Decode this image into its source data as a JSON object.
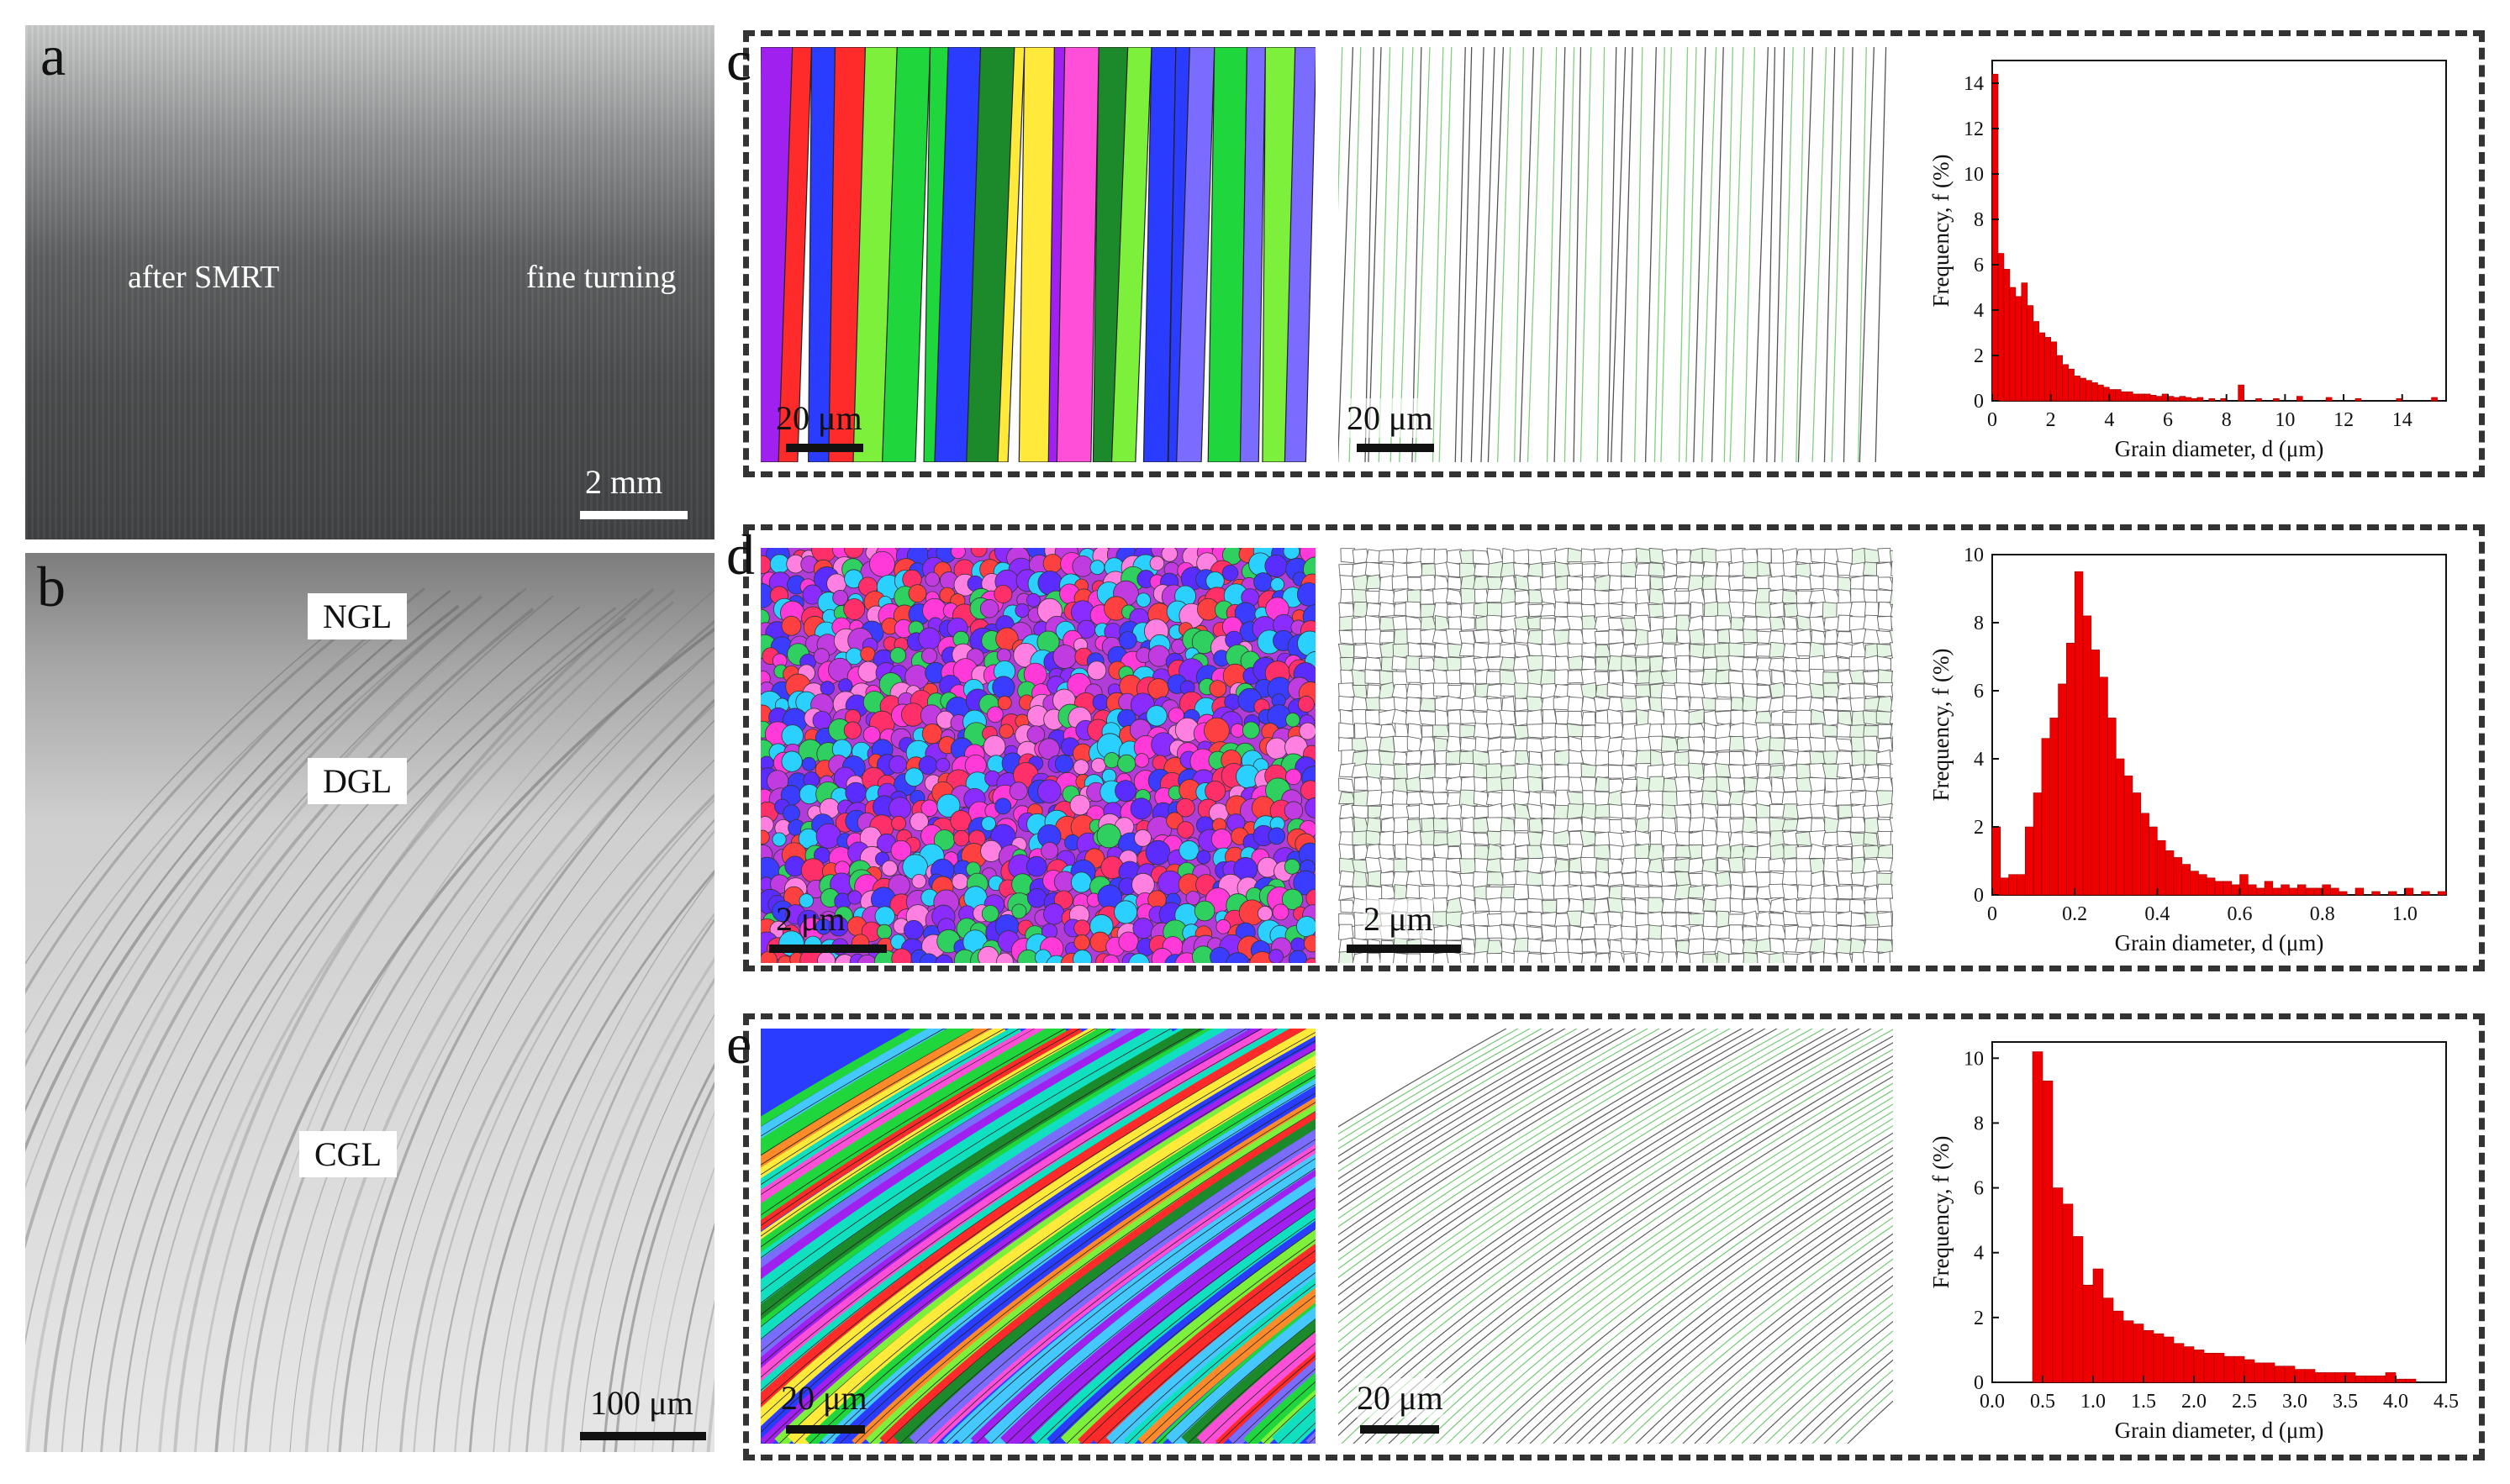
{
  "panels": {
    "a": {
      "letter": "a",
      "left_label": "after SMRT",
      "right_label": "fine turning",
      "scale": "2 mm"
    },
    "b": {
      "letter": "b",
      "zones": [
        "NGL",
        "DGL",
        "CGL"
      ],
      "scale": "100 μm"
    },
    "c": {
      "letter": "c",
      "scale_ipf": "20 μm",
      "scale_gb": "20 μm"
    },
    "d": {
      "letter": "d",
      "scale_ipf": "2 μm",
      "scale_gb": "2 μm"
    },
    "e": {
      "letter": "e",
      "scale_ipf": "20 μm",
      "scale_gb": "20 μm"
    }
  },
  "colors": {
    "bar": "#ee0000",
    "grain_green": "#8fd88f",
    "boundary": "#444444"
  },
  "chart_data": [
    {
      "type": "bar",
      "panel": "c",
      "xlabel": "Grain diameter, d (μm)",
      "ylabel": "Frequency, f (%)",
      "xlim": [
        0,
        15.5
      ],
      "ylim": [
        0,
        15
      ],
      "xticks": [
        "0",
        "2",
        "4",
        "6",
        "8",
        "10",
        "12",
        "14"
      ],
      "yticks": [
        "0",
        "2",
        "4",
        "6",
        "8",
        "10",
        "12",
        "14"
      ],
      "bin_width": 0.2,
      "x": [
        0.1,
        0.3,
        0.5,
        0.7,
        0.9,
        1.1,
        1.3,
        1.5,
        1.7,
        1.9,
        2.1,
        2.3,
        2.5,
        2.7,
        2.9,
        3.1,
        3.3,
        3.5,
        3.7,
        3.9,
        4.1,
        4.3,
        4.5,
        4.7,
        4.9,
        5.1,
        5.3,
        5.5,
        5.7,
        5.9,
        6.1,
        6.3,
        6.5,
        6.7,
        6.9,
        7.1,
        7.5,
        7.9,
        8.5,
        9.1,
        9.7,
        10.5,
        11.5,
        12.5,
        13.9,
        15.1
      ],
      "values": [
        14.4,
        6.5,
        5.8,
        5.0,
        4.6,
        5.2,
        4.2,
        3.5,
        3.0,
        2.8,
        2.6,
        2.0,
        1.6,
        1.4,
        1.1,
        1.0,
        0.9,
        0.8,
        0.7,
        0.6,
        0.5,
        0.5,
        0.4,
        0.4,
        0.3,
        0.3,
        0.3,
        0.25,
        0.2,
        0.3,
        0.2,
        0.15,
        0.2,
        0.15,
        0.1,
        0.15,
        0.1,
        0.1,
        0.7,
        0.1,
        0.1,
        0.2,
        0.15,
        0.1,
        0.1,
        0.15
      ]
    },
    {
      "type": "bar",
      "panel": "d",
      "xlabel": "Grain diameter, d (μm)",
      "ylabel": "Frequency, f (%)",
      "xlim": [
        0,
        1.1
      ],
      "ylim": [
        0,
        10
      ],
      "xticks": [
        "0",
        "0.2",
        "0.4",
        "0.6",
        "0.8",
        "1.0"
      ],
      "yticks": [
        "0",
        "2",
        "4",
        "6",
        "8",
        "10"
      ],
      "bin_width": 0.02,
      "x": [
        0.01,
        0.03,
        0.05,
        0.07,
        0.09,
        0.11,
        0.13,
        0.15,
        0.17,
        0.19,
        0.21,
        0.23,
        0.25,
        0.27,
        0.29,
        0.31,
        0.33,
        0.35,
        0.37,
        0.39,
        0.41,
        0.43,
        0.45,
        0.47,
        0.49,
        0.51,
        0.53,
        0.55,
        0.57,
        0.59,
        0.61,
        0.63,
        0.65,
        0.67,
        0.69,
        0.71,
        0.73,
        0.75,
        0.77,
        0.79,
        0.81,
        0.83,
        0.85,
        0.89,
        0.93,
        0.97,
        1.01,
        1.05,
        1.09
      ],
      "values": [
        2.0,
        0.5,
        0.6,
        0.6,
        2.0,
        3.0,
        4.6,
        5.2,
        6.2,
        7.4,
        9.5,
        8.2,
        7.2,
        6.4,
        5.2,
        4.0,
        3.5,
        3.0,
        2.4,
        2.0,
        1.6,
        1.3,
        1.1,
        0.9,
        0.7,
        0.6,
        0.5,
        0.4,
        0.4,
        0.3,
        0.6,
        0.3,
        0.2,
        0.4,
        0.2,
        0.3,
        0.2,
        0.3,
        0.2,
        0.2,
        0.3,
        0.2,
        0.1,
        0.2,
        0.1,
        0.1,
        0.2,
        0.1,
        0.1
      ]
    },
    {
      "type": "bar",
      "panel": "e",
      "xlabel": "Grain diameter, d (μm)",
      "ylabel": "Frequency, f (%)",
      "xlim": [
        0,
        4.5
      ],
      "ylim": [
        0,
        10.5
      ],
      "xticks": [
        "0.0",
        "0.5",
        "1.0",
        "1.5",
        "2.0",
        "2.5",
        "3.0",
        "3.5",
        "4.0",
        "4.5"
      ],
      "yticks": [
        "0",
        "2",
        "4",
        "6",
        "8",
        "10"
      ],
      "bin_width": 0.1,
      "x": [
        0.45,
        0.55,
        0.65,
        0.75,
        0.85,
        0.95,
        1.05,
        1.15,
        1.25,
        1.35,
        1.45,
        1.55,
        1.65,
        1.75,
        1.85,
        1.95,
        2.05,
        2.15,
        2.25,
        2.35,
        2.45,
        2.55,
        2.65,
        2.75,
        2.85,
        2.95,
        3.05,
        3.15,
        3.25,
        3.35,
        3.45,
        3.55,
        3.65,
        3.75,
        3.85,
        3.95,
        4.05,
        4.15
      ],
      "values": [
        10.2,
        9.3,
        6.0,
        5.5,
        4.5,
        3.0,
        3.5,
        2.6,
        2.2,
        1.9,
        1.8,
        1.6,
        1.5,
        1.4,
        1.2,
        1.1,
        1.0,
        0.9,
        0.9,
        0.8,
        0.8,
        0.7,
        0.6,
        0.6,
        0.5,
        0.5,
        0.4,
        0.4,
        0.3,
        0.3,
        0.3,
        0.3,
        0.2,
        0.2,
        0.2,
        0.3,
        0.1,
        0.1
      ]
    }
  ]
}
